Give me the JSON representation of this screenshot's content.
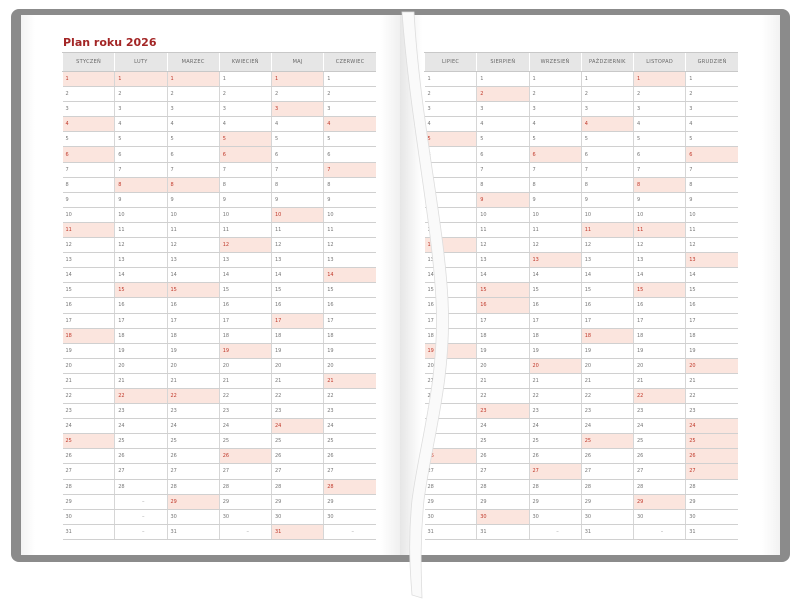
{
  "title": "Plan roku 2026",
  "empty_placeholder": "–",
  "colors": {
    "cover": "#8b8b8b",
    "title": "#a32626",
    "highlight_bg": "#fbe5de",
    "highlight_text": "#c0392b",
    "header_bg": "#e6e6e6"
  },
  "left_page": {
    "months": [
      {
        "name": "STYCZEŃ",
        "days": 31,
        "highlighted": [
          1,
          4,
          6,
          11,
          18,
          25
        ]
      },
      {
        "name": "LUTY",
        "days": 28,
        "highlighted": [
          1,
          8,
          15,
          22
        ]
      },
      {
        "name": "MARZEC",
        "days": 31,
        "highlighted": [
          1,
          8,
          15,
          22,
          29
        ]
      },
      {
        "name": "KWIECIEŃ",
        "days": 30,
        "highlighted": [
          5,
          6,
          12,
          19,
          26
        ]
      },
      {
        "name": "MAJ",
        "days": 31,
        "highlighted": [
          1,
          3,
          10,
          17,
          24,
          31
        ]
      },
      {
        "name": "CZERWIEC",
        "days": 30,
        "highlighted": [
          4,
          7,
          14,
          21,
          28
        ]
      }
    ]
  },
  "right_page": {
    "months": [
      {
        "name": "LIPIEC",
        "days": 31,
        "highlighted": [
          5,
          12,
          19,
          26
        ]
      },
      {
        "name": "SIERPIEŃ",
        "days": 31,
        "highlighted": [
          2,
          9,
          15,
          16,
          23,
          30
        ]
      },
      {
        "name": "WRZESIEŃ",
        "days": 30,
        "highlighted": [
          6,
          13,
          20,
          27
        ]
      },
      {
        "name": "PAŹDZIERNIK",
        "days": 31,
        "highlighted": [
          4,
          11,
          18,
          25
        ]
      },
      {
        "name": "LISTOPAD",
        "days": 30,
        "highlighted": [
          1,
          8,
          11,
          15,
          22,
          29
        ]
      },
      {
        "name": "GRUDZIEŃ",
        "days": 31,
        "highlighted": [
          6,
          13,
          20,
          24,
          25,
          26,
          27
        ]
      }
    ]
  }
}
